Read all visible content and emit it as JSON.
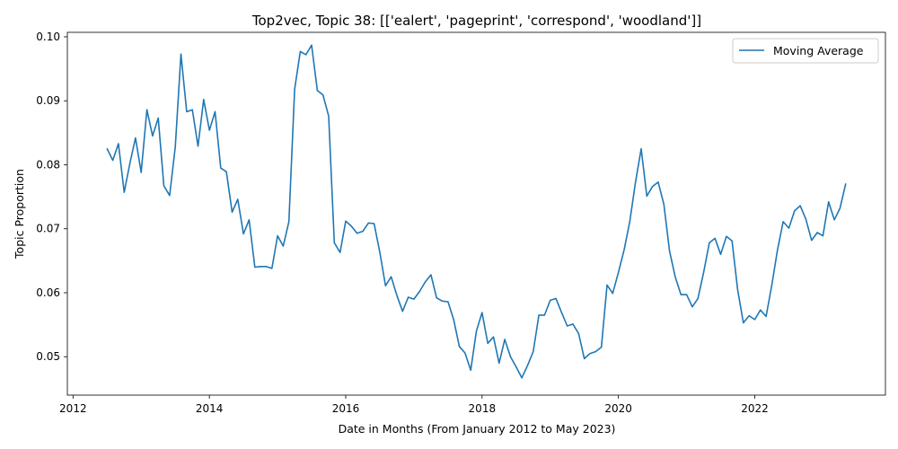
{
  "chart_data": {
    "type": "line",
    "title": "Top2vec, Topic 38: [['ealert', 'pageprint', 'correspond', 'woodland']]",
    "xlabel": "Date in Months (From January 2012 to May 2023)",
    "ylabel": "Topic Proportion",
    "xlim": [
      "2011-12-01",
      "2023-12-01"
    ],
    "ylim": [
      0.044,
      0.1007
    ],
    "x_ticks": [
      "2012",
      "2014",
      "2016",
      "2018",
      "2020",
      "2022"
    ],
    "y_ticks": [
      "0.05",
      "0.06",
      "0.07",
      "0.08",
      "0.09",
      "0.10"
    ],
    "grid": false,
    "legend": {
      "position": "top-right",
      "entries": [
        "Moving Average"
      ]
    },
    "colors": {
      "series": "#1f77b4",
      "axis": "#000000",
      "legend_border": "#cccccc"
    },
    "series": [
      {
        "name": "Moving Average",
        "x": [
          "2012-07",
          "2012-08",
          "2012-09",
          "2012-10",
          "2012-11",
          "2012-12",
          "2013-01",
          "2013-02",
          "2013-03",
          "2013-04",
          "2013-05",
          "2013-06",
          "2013-07",
          "2013-08",
          "2013-09",
          "2013-10",
          "2013-11",
          "2013-12",
          "2014-01",
          "2014-02",
          "2014-03",
          "2014-04",
          "2014-05",
          "2014-06",
          "2014-07",
          "2014-08",
          "2014-09",
          "2014-10",
          "2014-11",
          "2014-12",
          "2015-01",
          "2015-02",
          "2015-03",
          "2015-04",
          "2015-05",
          "2015-06",
          "2015-07",
          "2015-08",
          "2015-09",
          "2015-10",
          "2015-11",
          "2015-12",
          "2016-01",
          "2016-02",
          "2016-03",
          "2016-04",
          "2016-05",
          "2016-06",
          "2016-07",
          "2016-08",
          "2016-09",
          "2016-10",
          "2016-11",
          "2016-12",
          "2017-01",
          "2017-02",
          "2017-03",
          "2017-04",
          "2017-05",
          "2017-06",
          "2017-07",
          "2017-08",
          "2017-09",
          "2017-10",
          "2017-11",
          "2017-12",
          "2018-01",
          "2018-02",
          "2018-03",
          "2018-04",
          "2018-05",
          "2018-06",
          "2018-07",
          "2018-08",
          "2018-09",
          "2018-10",
          "2018-11",
          "2018-12",
          "2019-01",
          "2019-02",
          "2019-03",
          "2019-04",
          "2019-05",
          "2019-06",
          "2019-07",
          "2019-08",
          "2019-09",
          "2019-10",
          "2019-11",
          "2019-12",
          "2020-01",
          "2020-02",
          "2020-03",
          "2020-04",
          "2020-05",
          "2020-06",
          "2020-07",
          "2020-08",
          "2020-09",
          "2020-10",
          "2020-11",
          "2020-12",
          "2021-01",
          "2021-02",
          "2021-03",
          "2021-04",
          "2021-05",
          "2021-06",
          "2021-07",
          "2021-08",
          "2021-09",
          "2021-10",
          "2021-11",
          "2021-12",
          "2022-01",
          "2022-02",
          "2022-03",
          "2022-04",
          "2022-05",
          "2022-06",
          "2022-07",
          "2022-08",
          "2022-09",
          "2022-10",
          "2022-11",
          "2022-12",
          "2023-01",
          "2023-02",
          "2023-03",
          "2023-04",
          "2023-05"
        ],
        "values": [
          0.0825,
          0.0807,
          0.0833,
          0.0757,
          0.0802,
          0.0842,
          0.0788,
          0.0886,
          0.0845,
          0.0873,
          0.0767,
          0.0752,
          0.0828,
          0.0973,
          0.0883,
          0.0886,
          0.0829,
          0.0902,
          0.0854,
          0.0883,
          0.0795,
          0.0789,
          0.0726,
          0.0746,
          0.0692,
          0.0714,
          0.064,
          0.0641,
          0.0641,
          0.0638,
          0.0689,
          0.0673,
          0.0711,
          0.0918,
          0.0977,
          0.0972,
          0.0987,
          0.0916,
          0.0909,
          0.0876,
          0.0678,
          0.0663,
          0.0712,
          0.0704,
          0.0693,
          0.0696,
          0.0709,
          0.0708,
          0.0663,
          0.0611,
          0.0625,
          0.0596,
          0.0571,
          0.0593,
          0.059,
          0.0602,
          0.0617,
          0.0628,
          0.0592,
          0.0587,
          0.0586,
          0.0558,
          0.0516,
          0.0506,
          0.0479,
          0.054,
          0.0569,
          0.0521,
          0.0531,
          0.049,
          0.0527,
          0.05,
          0.0484,
          0.0467,
          0.0486,
          0.0508,
          0.0565,
          0.0565,
          0.0588,
          0.0591,
          0.0569,
          0.0548,
          0.0551,
          0.0536,
          0.0497,
          0.0505,
          0.0508,
          0.0515,
          0.0612,
          0.0599,
          0.0632,
          0.0667,
          0.0711,
          0.0772,
          0.0825,
          0.0751,
          0.0766,
          0.0773,
          0.0738,
          0.0665,
          0.0625,
          0.0597,
          0.0597,
          0.0578,
          0.0591,
          0.0632,
          0.0678,
          0.0685,
          0.066,
          0.0688,
          0.0681,
          0.0604,
          0.0553,
          0.0564,
          0.0558,
          0.0573,
          0.0563,
          0.0612,
          0.0667,
          0.0711,
          0.0701,
          0.0728,
          0.0736,
          0.0715,
          0.0682,
          0.0694,
          0.0689,
          0.0742,
          0.0714,
          0.0732,
          0.077
        ]
      }
    ]
  }
}
